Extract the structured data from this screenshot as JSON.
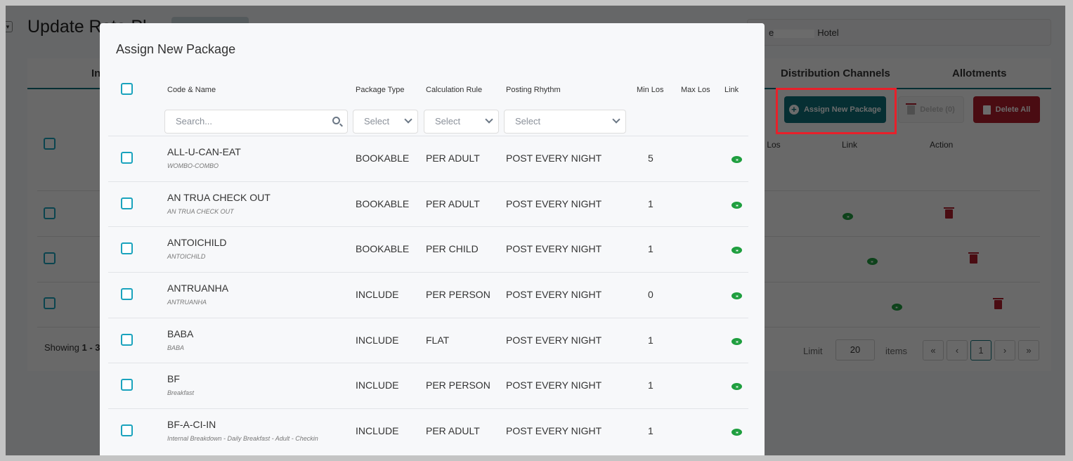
{
  "background": {
    "page_title": "Update Rate Pl",
    "hotel": {
      "prefix": "e",
      "suffix": "Hotel"
    },
    "tabs": [
      "In",
      "Distribution Channels",
      "Allotments"
    ],
    "buttons": {
      "assign": "Assign New Package",
      "delete": "Delete (0)",
      "delete_all": "Delete All"
    },
    "columns": [
      "x Los",
      "Link",
      "Action"
    ],
    "showing": "Showing",
    "showing_range": "1 - 3",
    "limit_label": "Limit",
    "limit_value": "20",
    "items_label": "items",
    "pagination": {
      "first": "«",
      "prev": "‹",
      "current": "1",
      "next": "›",
      "last": "»"
    },
    "colors": {
      "primary": "#0f6f7a",
      "danger": "#b01c2a",
      "link": "#1e9e3e",
      "highlight": "#e8202a"
    }
  },
  "modal": {
    "title": "Assign New Package",
    "headers": {
      "code_name": "Code & Name",
      "package_type": "Package Type",
      "calculation_rule": "Calculation Rule",
      "posting_rhythm": "Posting Rhythm",
      "min_los": "Min Los",
      "max_los": "Max Los",
      "link": "Link"
    },
    "filters": {
      "search_placeholder": "Search...",
      "package_type": "Select",
      "calculation_rule": "Select",
      "posting_rhythm": "Select"
    },
    "rows": [
      {
        "code": "ALL-U-CAN-EAT",
        "name": "WOMBO-COMBO",
        "type": "BOOKABLE",
        "rule": "PER ADULT",
        "rhythm": "POST EVERY NIGHT",
        "min_los": "5",
        "max_los": ""
      },
      {
        "code": "AN TRUA CHECK OUT",
        "name": "AN TRUA CHECK OUT",
        "type": "BOOKABLE",
        "rule": "PER ADULT",
        "rhythm": "POST EVERY NIGHT",
        "min_los": "1",
        "max_los": ""
      },
      {
        "code": "ANTOICHILD",
        "name": "ANTOICHILD",
        "type": "BOOKABLE",
        "rule": "PER CHILD",
        "rhythm": "POST EVERY NIGHT",
        "min_los": "1",
        "max_los": ""
      },
      {
        "code": "ANTRUANHA",
        "name": "ANTRUANHA",
        "type": "INCLUDE",
        "rule": "PER PERSON",
        "rhythm": "POST EVERY NIGHT",
        "min_los": "0",
        "max_los": ""
      },
      {
        "code": "BABA",
        "name": "BABA",
        "type": "INCLUDE",
        "rule": "FLAT",
        "rhythm": "POST EVERY NIGHT",
        "min_los": "1",
        "max_los": ""
      },
      {
        "code": "BF",
        "name": "Breakfast",
        "type": "INCLUDE",
        "rule": "PER PERSON",
        "rhythm": "POST EVERY NIGHT",
        "min_los": "1",
        "max_los": ""
      },
      {
        "code": "BF-A-CI-IN",
        "name": "Internal Breakdown - Daily Breakfast - Adult - Checkin",
        "type": "INCLUDE",
        "rule": "PER ADULT",
        "rhythm": "POST EVERY NIGHT",
        "min_los": "1",
        "max_los": ""
      }
    ]
  }
}
